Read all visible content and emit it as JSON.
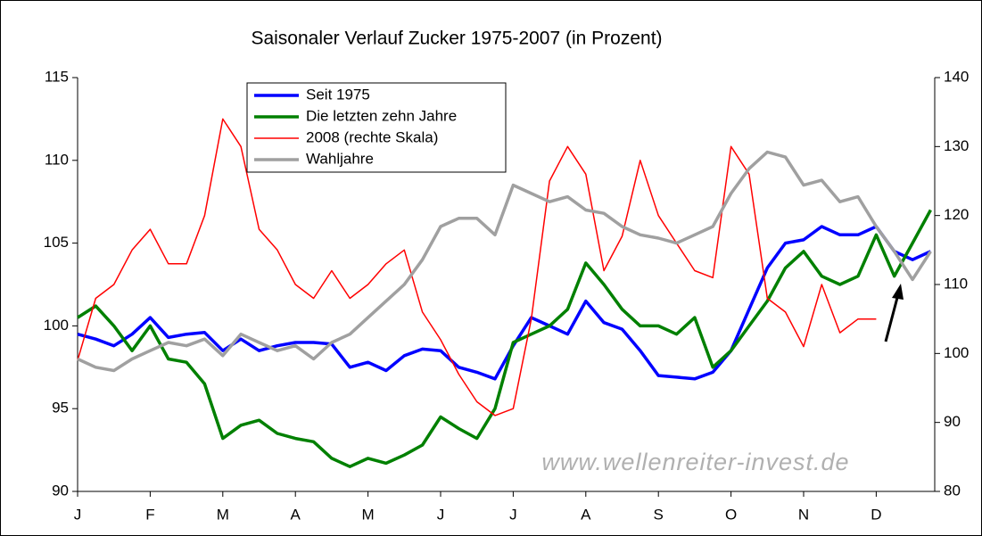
{
  "chart_data": {
    "type": "line",
    "title": "Saisonaler Verlauf Zucker 1975-2007 (in Prozent)",
    "annotation": "www.wellenreiter-invest.de",
    "x": [
      0,
      0.25,
      0.5,
      0.75,
      1,
      1.25,
      1.5,
      1.75,
      2,
      2.25,
      2.5,
      2.75,
      3,
      3.25,
      3.5,
      3.75,
      4,
      4.25,
      4.5,
      4.75,
      5,
      5.25,
      5.5,
      5.75,
      6,
      6.25,
      6.5,
      6.75,
      7,
      7.25,
      7.5,
      7.75,
      8,
      8.25,
      8.5,
      8.75,
      9,
      9.25,
      9.5,
      9.75,
      10,
      10.25,
      10.5,
      10.75,
      11,
      11.25,
      11.5,
      11.75
    ],
    "xlim": [
      0,
      11.8
    ],
    "xticks": [
      {
        "value": 0,
        "label": "J"
      },
      {
        "value": 1,
        "label": "F"
      },
      {
        "value": 2,
        "label": "M"
      },
      {
        "value": 3,
        "label": "A"
      },
      {
        "value": 4,
        "label": "M"
      },
      {
        "value": 5,
        "label": "J"
      },
      {
        "value": 6,
        "label": "J"
      },
      {
        "value": 7,
        "label": "A"
      },
      {
        "value": 8,
        "label": "S"
      },
      {
        "value": 9,
        "label": "O"
      },
      {
        "value": 10,
        "label": "N"
      },
      {
        "value": 11,
        "label": "D"
      }
    ],
    "ylim": [
      90,
      115
    ],
    "yticks": [
      90,
      95,
      100,
      105,
      110,
      115
    ],
    "y2lim": [
      80,
      140
    ],
    "y2ticks": [
      80,
      90,
      100,
      110,
      120,
      130,
      140
    ],
    "series": [
      {
        "name": "Seit 1975",
        "color": "#0000ff",
        "values": [
          99.5,
          99.2,
          98.8,
          99.5,
          100.5,
          99.3,
          99.5,
          99.6,
          98.5,
          99.2,
          98.5,
          98.8,
          99,
          99,
          98.9,
          97.5,
          97.8,
          97.3,
          98.2,
          98.6,
          98.5,
          97.5,
          97.2,
          96.8,
          98.8,
          100.5,
          100,
          99.5,
          101.5,
          100.2,
          99.8,
          98.5,
          97,
          96.9,
          96.8,
          97.2,
          98.5,
          101,
          103.5,
          105,
          105.2,
          106,
          105.5,
          105.5,
          106,
          104.5,
          104,
          104.5
        ]
      },
      {
        "name": "Die letzten zehn Jahre",
        "color": "#008000",
        "values": [
          100.5,
          101.2,
          100,
          98.5,
          100,
          98,
          97.8,
          96.5,
          93.2,
          94,
          94.3,
          93.5,
          93.2,
          93,
          92,
          91.5,
          92,
          91.7,
          92.2,
          92.8,
          94.5,
          93.8,
          93.2,
          95,
          99,
          99.5,
          100,
          101,
          103.8,
          102.5,
          101,
          100,
          100,
          99.5,
          100.5,
          97.5,
          98.5,
          100,
          101.5,
          103.5,
          104.5,
          103,
          102.5,
          103,
          105.5,
          103,
          105,
          107
        ]
      },
      {
        "name": "2008 (rechte Skala)",
        "color": "#ff0000",
        "axis": "y2",
        "values": [
          99,
          108,
          110,
          115,
          118,
          113,
          113,
          120,
          134,
          130,
          118,
          115,
          110,
          108,
          112,
          108,
          110,
          113,
          115,
          106,
          102,
          97,
          93,
          91,
          92,
          105,
          125,
          130,
          126,
          112,
          117,
          128,
          120,
          116,
          112,
          111,
          130,
          126,
          108,
          106,
          101,
          110,
          103,
          105,
          105,
          null,
          null,
          null
        ]
      },
      {
        "name": "Wahljahre",
        "color": "#a0a0a0",
        "values": [
          98,
          97.5,
          97.3,
          98,
          98.5,
          99,
          98.8,
          99.2,
          98.2,
          99.5,
          99,
          98.5,
          98.8,
          98,
          99,
          99.5,
          100.5,
          101.5,
          102.5,
          104,
          106,
          106.5,
          106.5,
          105.5,
          108.5,
          108,
          107.5,
          107.8,
          107,
          106.8,
          106,
          105.5,
          105.3,
          105,
          105.5,
          106,
          108,
          109.5,
          110.5,
          110.2,
          108.5,
          108.8,
          107.5,
          107.8,
          106,
          104.5,
          102.8,
          104.5
        ]
      }
    ]
  }
}
